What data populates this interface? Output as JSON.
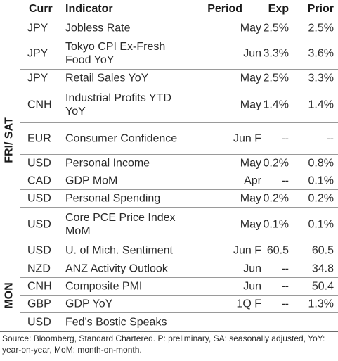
{
  "header": {
    "curr": "Curr",
    "indicator": "Indicator",
    "period": "Period",
    "exp": "Exp",
    "prior": "Prior"
  },
  "groups": [
    {
      "label": "FRI/ SAT",
      "rows": [
        {
          "curr": "JPY",
          "indicator": "Jobless Rate",
          "period": "May",
          "exp": "2.5%",
          "prior": "2.5%"
        },
        {
          "curr": "JPY",
          "indicator": "Tokyo CPI Ex-Fresh Food YoY",
          "period": "Jun",
          "exp": "3.3%",
          "prior": "3.6%"
        },
        {
          "curr": "JPY",
          "indicator": "Retail Sales YoY",
          "period": "May",
          "exp": "2.5%",
          "prior": "3.3%"
        },
        {
          "curr": "CNH",
          "indicator": "Industrial Profits YTD YoY",
          "period": "May",
          "exp": "1.4%",
          "prior": "1.4%"
        },
        {
          "curr": "EUR",
          "indicator": "Consumer Confidence",
          "period": "Jun F",
          "exp": "--",
          "prior": "--"
        },
        {
          "curr": "USD",
          "indicator": "Personal Income",
          "period": "May",
          "exp": "0.2%",
          "prior": "0.8%"
        },
        {
          "curr": "CAD",
          "indicator": "GDP MoM",
          "period": "Apr",
          "exp": "--",
          "prior": "0.1%"
        },
        {
          "curr": "USD",
          "indicator": "Personal Spending",
          "period": "May",
          "exp": "0.2%",
          "prior": "0.2%"
        },
        {
          "curr": "USD",
          "indicator": "Core PCE Price Index MoM",
          "period": "May",
          "exp": "0.1%",
          "prior": "0.1%"
        },
        {
          "curr": "USD",
          "indicator": "U. of Mich. Sentiment",
          "period": "Jun F",
          "exp": "60.5",
          "prior": "60.5"
        }
      ]
    },
    {
      "label": "MON",
      "rows": [
        {
          "curr": "NZD",
          "indicator": "ANZ Activity Outlook",
          "period": "Jun",
          "exp": "--",
          "prior": "34.8"
        },
        {
          "curr": "CNH",
          "indicator": "Composite PMI",
          "period": "Jun",
          "exp": "--",
          "prior": "50.4"
        },
        {
          "curr": "GBP",
          "indicator": "GDP YoY",
          "period": "1Q F",
          "exp": "--",
          "prior": "1.3%"
        },
        {
          "curr": "USD",
          "indicator": "Fed's Bostic Speaks",
          "period": "",
          "exp": "",
          "prior": ""
        }
      ]
    }
  ],
  "footnote": "Source: Bloomberg, Standard Chartered. P: preliminary, SA: seasonally adjusted, YoY: year-on-year, MoM: month-on-month."
}
